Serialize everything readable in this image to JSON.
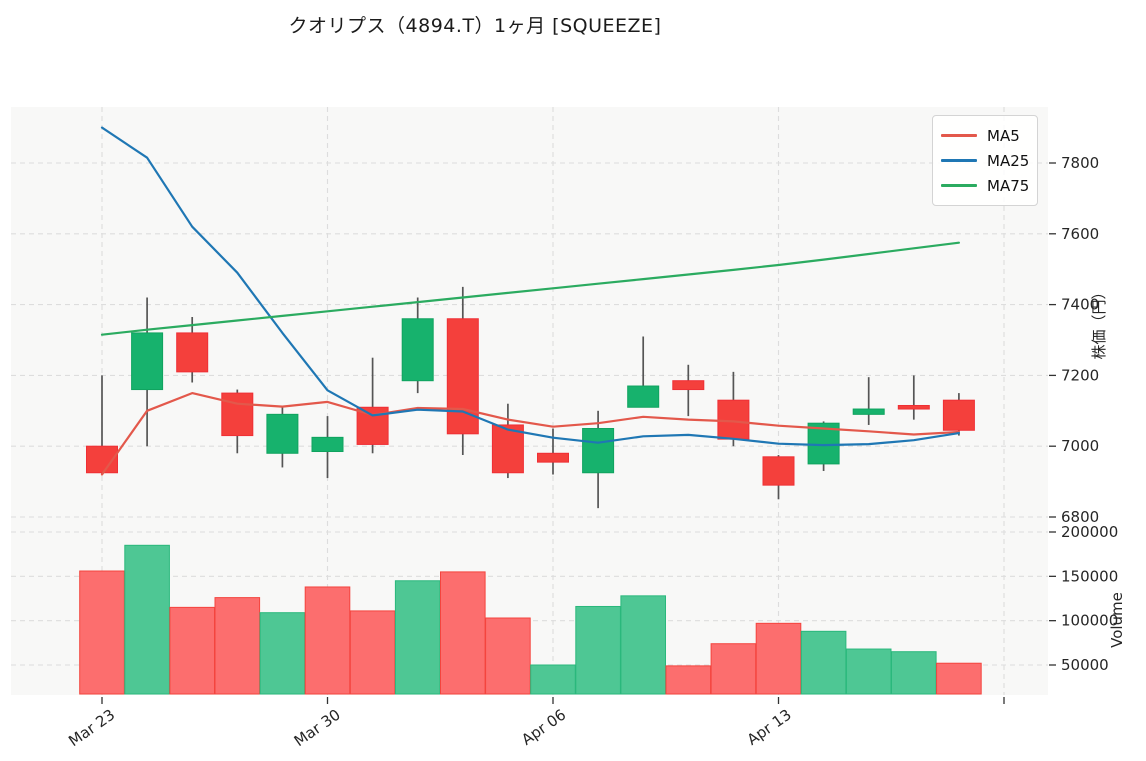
{
  "title": "クオリプス（4894.T）1ヶ月 [SQUEEZE]",
  "colors": {
    "candle_up_fill": "#17b26d",
    "candle_up_border": "#10a35f",
    "candle_down_fill": "#f4403c",
    "candle_down_border": "#ef2f35",
    "volume_up_fill": "#4ec794",
    "volume_up_border": "#2ab87c",
    "volume_down_fill": "#fc6e6e",
    "volume_down_border": "#f4443e",
    "wick": "#555555",
    "grid": "#dddddd",
    "plot_bg": "#f8f8f7",
    "tick_text": "#262626",
    "axis_tick_mark": "#333333"
  },
  "chart_data": {
    "type": "candlestick_with_volume",
    "title": "クオリプス（4894.T）1ヶ月 [SQUEEZE]",
    "price_axis": {
      "label": "株価（円）",
      "ticks": [
        7800,
        7600,
        7400,
        7200,
        7000,
        6800
      ],
      "ylim": [
        6760,
        7960
      ]
    },
    "volume_axis": {
      "label": "Volume",
      "ticks": [
        200000,
        150000,
        100000,
        50000
      ]
    },
    "x_ticks": [
      {
        "day": 0,
        "label": "Mar 23"
      },
      {
        "day": 5,
        "label": "Mar 30"
      },
      {
        "day": 10,
        "label": "Apr 06"
      },
      {
        "day": 15,
        "label": "Apr 13"
      },
      {
        "day": 20,
        "label": ""
      }
    ],
    "grid": "dashed",
    "legend_position": "top-right",
    "candles": [
      {
        "open": 7000,
        "high": 7200,
        "low": 6920,
        "close": 6925,
        "volume": 156000,
        "volume_bar": "down"
      },
      {
        "open": 7160,
        "high": 7420,
        "low": 7000,
        "close": 7320,
        "volume": 185000,
        "volume_bar": "up"
      },
      {
        "open": 7320,
        "high": 7365,
        "low": 7180,
        "close": 7210,
        "volume": 115000,
        "volume_bar": "down"
      },
      {
        "open": 7150,
        "high": 7160,
        "low": 6980,
        "close": 7030,
        "volume": 126000,
        "volume_bar": "down"
      },
      {
        "open": 6980,
        "high": 7110,
        "low": 6940,
        "close": 7090,
        "volume": 109000,
        "volume_bar": "up"
      },
      {
        "open": 6985,
        "high": 7085,
        "low": 6910,
        "close": 7025,
        "volume": 138000,
        "volume_bar": "down"
      },
      {
        "open": 7110,
        "high": 7250,
        "low": 6980,
        "close": 7005,
        "volume": 111000,
        "volume_bar": "down"
      },
      {
        "open": 7185,
        "high": 7420,
        "low": 7150,
        "close": 7360,
        "volume": 145000,
        "volume_bar": "up"
      },
      {
        "open": 7360,
        "high": 7450,
        "low": 6975,
        "close": 7035,
        "volume": 155000,
        "volume_bar": "down"
      },
      {
        "open": 7060,
        "high": 7120,
        "low": 6910,
        "close": 6925,
        "volume": 103000,
        "volume_bar": "down"
      },
      {
        "open": 6980,
        "high": 7050,
        "low": 6920,
        "close": 6955,
        "volume": 50000,
        "volume_bar": "up"
      },
      {
        "open": 6925,
        "high": 7100,
        "low": 6825,
        "close": 7050,
        "volume": 116000,
        "volume_bar": "up"
      },
      {
        "open": 7110,
        "high": 7310,
        "low": 7110,
        "close": 7170,
        "volume": 128000,
        "volume_bar": "up"
      },
      {
        "open": 7185,
        "high": 7230,
        "low": 7085,
        "close": 7160,
        "volume": 49000,
        "volume_bar": "down"
      },
      {
        "open": 7130,
        "high": 7210,
        "low": 7000,
        "close": 7020,
        "volume": 74000,
        "volume_bar": "down"
      },
      {
        "open": 6970,
        "high": 6975,
        "low": 6850,
        "close": 6890,
        "volume": 97000,
        "volume_bar": "down"
      },
      {
        "open": 6950,
        "high": 7070,
        "low": 6930,
        "close": 7065,
        "volume": 88000,
        "volume_bar": "up"
      },
      {
        "open": 7090,
        "high": 7195,
        "low": 7060,
        "close": 7105,
        "volume": 68000,
        "volume_bar": "up"
      },
      {
        "open": 7115,
        "high": 7200,
        "low": 7075,
        "close": 7105,
        "volume": 65000,
        "volume_bar": "up"
      },
      {
        "open": 7130,
        "high": 7150,
        "low": 7030,
        "close": 7045,
        "volume": 52000,
        "volume_bar": "down"
      }
    ],
    "ma_series": [
      {
        "name": "MA5",
        "color": "#e3584b",
        "values": [
          6920,
          7100,
          7150,
          7120,
          7112,
          7125,
          7088,
          7108,
          7105,
          7075,
          7055,
          7065,
          7083,
          7075,
          7070,
          7058,
          7050,
          7042,
          7033,
          7040
        ]
      },
      {
        "name": "MA25",
        "color": "#1f77b4",
        "values": [
          7900,
          7815,
          7620,
          7490,
          7320,
          7158,
          7087,
          7103,
          7098,
          7047,
          7024,
          7010,
          7028,
          7032,
          7021,
          7007,
          7003,
          7006,
          7017,
          7037
        ]
      },
      {
        "name": "MA75",
        "color": "#2bab60",
        "values": [
          7315,
          7329,
          7342,
          7355,
          7368,
          7381,
          7394,
          7407,
          7420,
          7433,
          7446,
          7459,
          7472,
          7485,
          7498,
          7512,
          7527,
          7543,
          7559,
          7575
        ]
      }
    ]
  }
}
